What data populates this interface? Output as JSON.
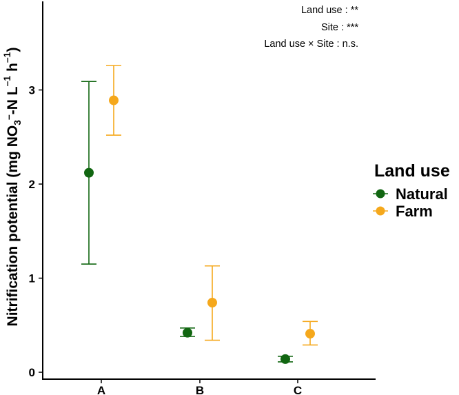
{
  "chart_data": {
    "type": "scatter",
    "categories": [
      "A",
      "B",
      "C"
    ],
    "ylabel_parts": {
      "main": "Nitrification potential (mg NO",
      "sub": "3",
      "sup": "–",
      "mid": "-N  L",
      "sup2": "–1",
      "end": "  h",
      "sup3": "–1",
      "close": ")"
    },
    "ylim": [
      0,
      3.9
    ],
    "yticks": [
      0,
      1,
      2,
      3
    ],
    "series": [
      {
        "name": "Natural",
        "color": "#116611",
        "mean": [
          2.12,
          0.42,
          0.14
        ],
        "lower": [
          1.15,
          0.38,
          0.11
        ],
        "upper": [
          3.09,
          0.47,
          0.17
        ]
      },
      {
        "name": "Farm",
        "color": "#F5A81C",
        "mean": [
          2.89,
          0.74,
          0.41
        ],
        "lower": [
          2.52,
          0.34,
          0.29
        ],
        "upper": [
          3.26,
          1.13,
          0.54
        ]
      }
    ],
    "annotations": [
      "Land use : **",
      "Site : ***",
      "Land use × Site : n.s."
    ],
    "legend": {
      "title": "Land use",
      "placement": "right"
    },
    "grid": false
  }
}
